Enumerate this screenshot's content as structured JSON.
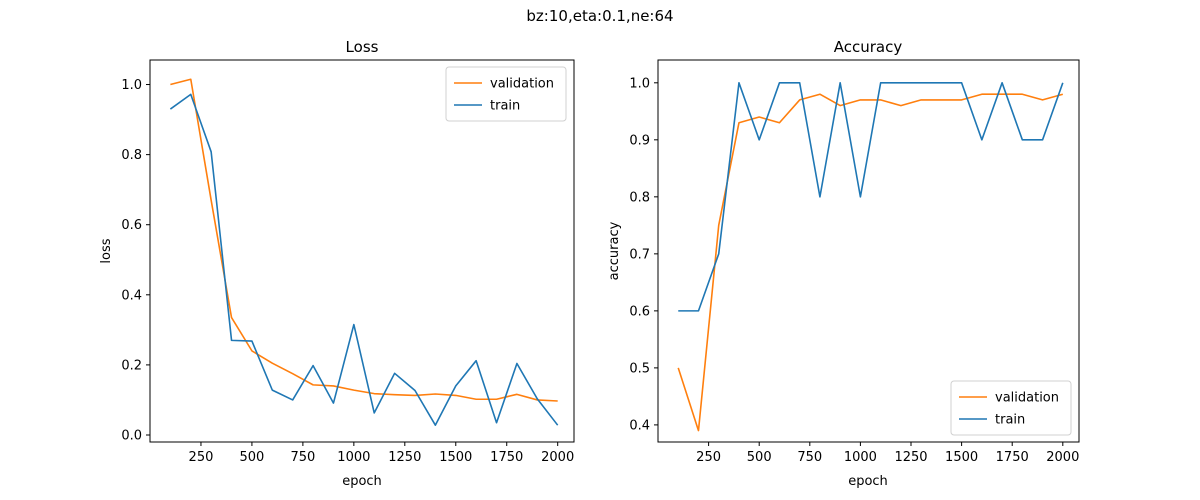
{
  "figure": {
    "suptitle": "bz:10,eta:0.1,ne:64"
  },
  "colors": {
    "validation": "#ff7f0e",
    "train": "#1f77b4"
  },
  "chart_data": [
    {
      "type": "line",
      "title": "Loss",
      "xlabel": "epoch",
      "ylabel": "loss",
      "xlim": [
        0,
        2080
      ],
      "ylim": [
        -0.02,
        1.07
      ],
      "xticks": [
        250,
        500,
        750,
        1000,
        1250,
        1500,
        1750,
        2000
      ],
      "xtick_labels": [
        "250",
        "500",
        "750",
        "1000",
        "1250",
        "1500",
        "1750",
        "2000"
      ],
      "yticks": [
        0.0,
        0.2,
        0.4,
        0.6,
        0.8,
        1.0
      ],
      "ytick_labels": [
        "0.0",
        "0.2",
        "0.4",
        "0.6",
        "0.8",
        "1.0"
      ],
      "legend": "upper-right",
      "grid": false,
      "x": [
        100,
        200,
        300,
        400,
        500,
        600,
        700,
        800,
        900,
        1000,
        1100,
        1200,
        1300,
        1400,
        1500,
        1600,
        1700,
        1800,
        1900,
        2000
      ],
      "series": [
        {
          "name": "validation",
          "color": "#ff7f0e",
          "values": [
            1.0,
            1.015,
            0.67,
            0.335,
            0.24,
            0.205,
            0.175,
            0.143,
            0.14,
            0.128,
            0.118,
            0.115,
            0.113,
            0.117,
            0.113,
            0.102,
            0.102,
            0.116,
            0.1,
            0.097
          ]
        },
        {
          "name": "train",
          "color": "#1f77b4",
          "values": [
            0.93,
            0.972,
            0.808,
            0.27,
            0.268,
            0.128,
            0.1,
            0.198,
            0.091,
            0.315,
            0.063,
            0.176,
            0.127,
            0.028,
            0.14,
            0.212,
            0.035,
            0.204,
            0.103,
            0.028
          ]
        }
      ]
    },
    {
      "type": "line",
      "title": "Accuracy",
      "xlabel": "epoch",
      "ylabel": "accuracy",
      "xlim": [
        0,
        2080
      ],
      "ylim": [
        0.37,
        1.04
      ],
      "xticks": [
        250,
        500,
        750,
        1000,
        1250,
        1500,
        1750,
        2000
      ],
      "xtick_labels": [
        "250",
        "500",
        "750",
        "1000",
        "1250",
        "1500",
        "1750",
        "2000"
      ],
      "yticks": [
        0.4,
        0.5,
        0.6,
        0.7,
        0.8,
        0.9,
        1.0
      ],
      "ytick_labels": [
        "0.4",
        "0.5",
        "0.6",
        "0.7",
        "0.8",
        "0.9",
        "1.0"
      ],
      "legend": "lower-right",
      "grid": false,
      "x": [
        100,
        200,
        300,
        400,
        500,
        600,
        700,
        800,
        900,
        1000,
        1100,
        1200,
        1300,
        1400,
        1500,
        1600,
        1700,
        1800,
        1900,
        2000
      ],
      "series": [
        {
          "name": "validation",
          "color": "#ff7f0e",
          "values": [
            0.5,
            0.39,
            0.75,
            0.93,
            0.94,
            0.93,
            0.97,
            0.98,
            0.96,
            0.97,
            0.97,
            0.96,
            0.97,
            0.97,
            0.97,
            0.98,
            0.98,
            0.98,
            0.97,
            0.98
          ]
        },
        {
          "name": "train",
          "color": "#1f77b4",
          "values": [
            0.6,
            0.6,
            0.7,
            1.0,
            0.9,
            1.0,
            1.0,
            0.8,
            1.0,
            0.8,
            1.0,
            1.0,
            1.0,
            1.0,
            1.0,
            0.9,
            1.0,
            0.9,
            0.9,
            1.0
          ]
        }
      ]
    }
  ]
}
